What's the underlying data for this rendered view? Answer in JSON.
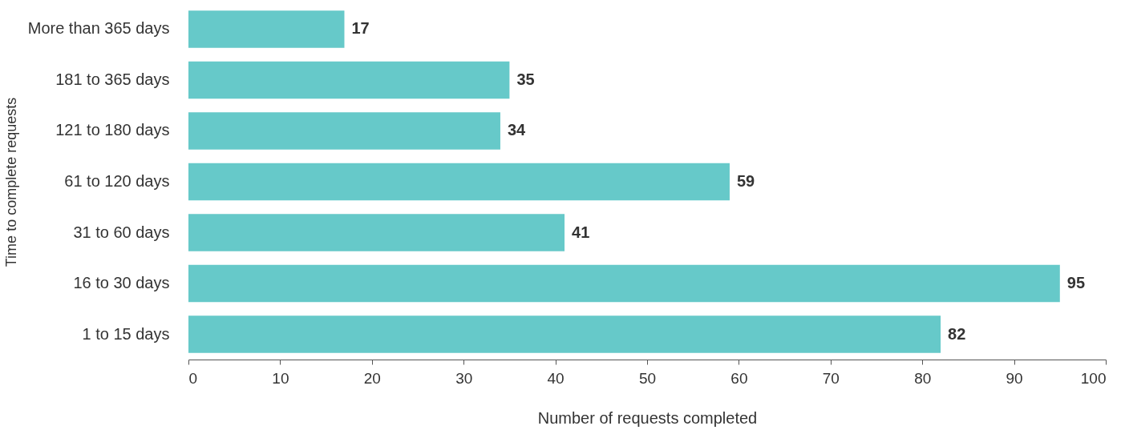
{
  "chart_data": {
    "type": "bar",
    "orientation": "horizontal",
    "xlabel": "Number of requests completed",
    "ylabel": "Time to complete requests",
    "categories": [
      "More than 365 days",
      "181 to 365 days",
      "121 to 180 days",
      "61 to 120 days",
      "31 to 60 days",
      "16 to 30 days",
      "1 to 15 days"
    ],
    "values": [
      17,
      35,
      34,
      59,
      41,
      95,
      82
    ],
    "color": "#66c9c9",
    "xlim": [
      0,
      100
    ],
    "xticks": [
      0,
      10,
      20,
      30,
      40,
      50,
      60,
      70,
      80,
      90,
      100
    ],
    "data_labels": true,
    "grid": false
  }
}
